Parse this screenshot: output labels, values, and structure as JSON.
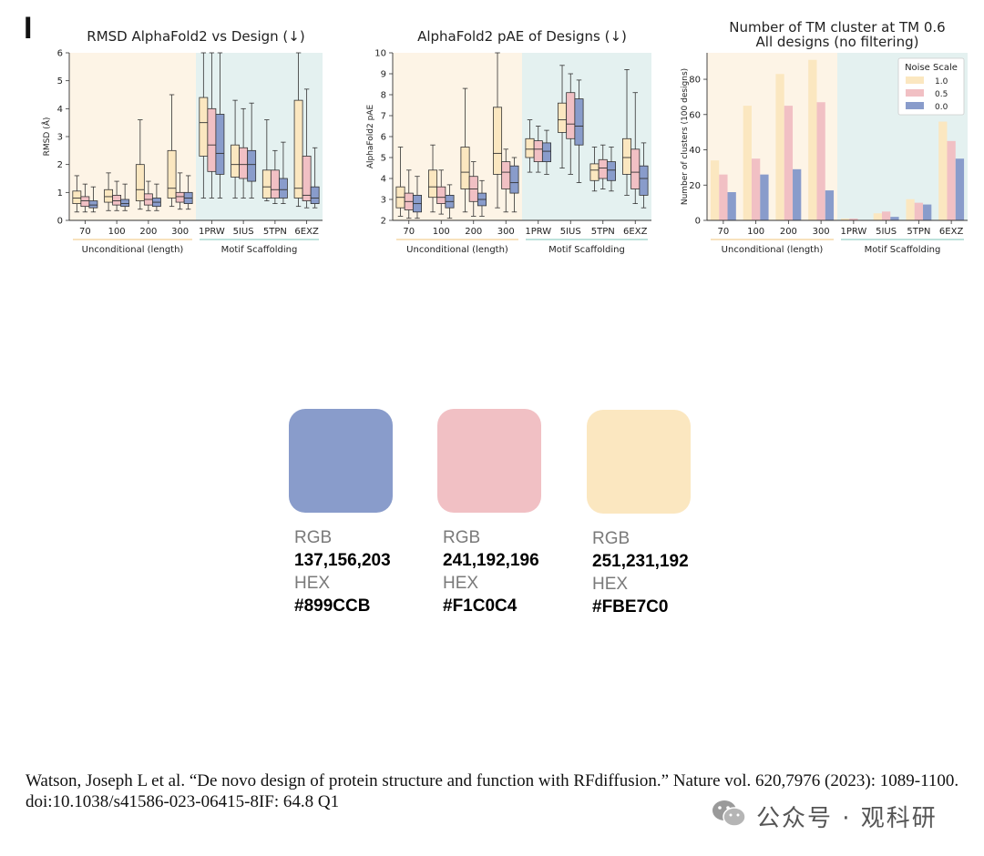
{
  "panel_letter": "I",
  "colors": {
    "c10": "#FBE7C0",
    "c05": "#F1C0C4",
    "c00": "#899CCB",
    "bg_uncond": "#FDF4E6",
    "bg_motif": "#E4F1F0",
    "line_uncond": "#F6D9A8",
    "line_motif": "#A8D8D0"
  },
  "chart_data": [
    {
      "type": "box",
      "title": "RMSD AlphaFold2 vs Design (↓)",
      "ylabel": "RMSD (Å)",
      "ylim": [
        0,
        6
      ],
      "yticks": [
        "0",
        "1",
        "2",
        "3",
        "4",
        "5",
        "6"
      ],
      "categories": [
        "70",
        "100",
        "200",
        "300",
        "1PRW",
        "5IUS",
        "5TPN",
        "6EXZ"
      ],
      "groups": [
        {
          "label": "Unconditional (length)",
          "count": 4
        },
        {
          "label": "Motif Scaffolding",
          "count": 4
        }
      ],
      "series": [
        {
          "name": "1.0",
          "color": "#FBE7C0",
          "boxes": [
            [
              0.3,
              0.6,
              0.8,
              1.05,
              1.6
            ],
            [
              0.35,
              0.65,
              0.85,
              1.1,
              1.7
            ],
            [
              0.4,
              0.7,
              1.1,
              2.0,
              3.6
            ],
            [
              0.5,
              0.8,
              1.15,
              2.5,
              4.5
            ],
            [
              0.8,
              2.3,
              3.5,
              4.4,
              6.0
            ],
            [
              0.8,
              1.55,
              2.0,
              2.7,
              4.3
            ],
            [
              0.7,
              0.8,
              1.2,
              1.8,
              3.6
            ],
            [
              0.5,
              0.8,
              1.15,
              4.3,
              6.0
            ]
          ]
        },
        {
          "name": "0.5",
          "color": "#F1C0C4",
          "boxes": [
            [
              0.3,
              0.5,
              0.7,
              0.85,
              1.3
            ],
            [
              0.35,
              0.55,
              0.7,
              0.9,
              1.4
            ],
            [
              0.35,
              0.55,
              0.75,
              0.95,
              1.4
            ],
            [
              0.4,
              0.65,
              0.85,
              1.0,
              1.7
            ],
            [
              0.8,
              1.75,
              2.7,
              4.0,
              6.0
            ],
            [
              0.8,
              1.5,
              2.0,
              2.6,
              4.0
            ],
            [
              0.6,
              0.8,
              1.1,
              1.8,
              2.5
            ],
            [
              0.45,
              0.7,
              0.9,
              2.3,
              4.7
            ]
          ]
        },
        {
          "name": "0.0",
          "color": "#899CCB",
          "boxes": [
            [
              0.3,
              0.45,
              0.55,
              0.7,
              1.2
            ],
            [
              0.35,
              0.5,
              0.6,
              0.75,
              1.3
            ],
            [
              0.35,
              0.5,
              0.65,
              0.8,
              1.3
            ],
            [
              0.4,
              0.6,
              0.8,
              1.0,
              1.6
            ],
            [
              0.8,
              1.65,
              2.4,
              3.8,
              6.0
            ],
            [
              0.8,
              1.4,
              2.0,
              2.5,
              4.2
            ],
            [
              0.6,
              0.8,
              1.1,
              1.5,
              2.8
            ],
            [
              0.45,
              0.6,
              0.8,
              1.2,
              2.6
            ]
          ]
        }
      ]
    },
    {
      "type": "box",
      "title": "AlphaFold2 pAE of Designs (↓)",
      "ylabel": "AlphaFold2 pAE",
      "ylim": [
        2,
        10
      ],
      "yticks": [
        "2",
        "3",
        "4",
        "5",
        "6",
        "7",
        "8",
        "9",
        "10"
      ],
      "categories": [
        "70",
        "100",
        "200",
        "300",
        "1PRW",
        "5IUS",
        "5TPN",
        "6EXZ"
      ],
      "groups": [
        {
          "label": "Unconditional (length)",
          "count": 4
        },
        {
          "label": "Motif Scaffolding",
          "count": 4
        }
      ],
      "series": [
        {
          "name": "1.0",
          "color": "#FBE7C0",
          "boxes": [
            [
              2.2,
              2.6,
              3.1,
              3.6,
              5.5
            ],
            [
              2.4,
              3.1,
              3.6,
              4.4,
              5.6
            ],
            [
              2.4,
              3.5,
              4.3,
              5.5,
              8.3
            ],
            [
              2.6,
              4.2,
              5.2,
              7.4,
              10.0
            ],
            [
              4.3,
              5.0,
              5.4,
              5.9,
              6.8
            ],
            [
              4.5,
              6.2,
              6.8,
              7.6,
              9.4
            ],
            [
              3.4,
              3.9,
              4.4,
              4.7,
              5.5
            ],
            [
              3.2,
              4.2,
              5.0,
              5.9,
              9.2
            ]
          ]
        },
        {
          "name": "0.5",
          "color": "#F1C0C4",
          "boxes": [
            [
              2.1,
              2.5,
              2.9,
              3.3,
              4.4
            ],
            [
              2.3,
              2.8,
              3.1,
              3.6,
              4.4
            ],
            [
              2.2,
              2.9,
              3.5,
              4.1,
              4.8
            ],
            [
              2.4,
              3.5,
              4.3,
              4.8,
              5.4
            ],
            [
              4.3,
              4.8,
              5.4,
              5.8,
              6.5
            ],
            [
              4.2,
              5.9,
              6.6,
              8.1,
              9.0
            ],
            [
              3.5,
              4.0,
              4.5,
              4.9,
              5.6
            ],
            [
              2.8,
              3.5,
              4.3,
              5.4,
              8.1
            ]
          ]
        },
        {
          "name": "0.0",
          "color": "#899CCB",
          "boxes": [
            [
              2.1,
              2.4,
              2.8,
              3.2,
              4.1
            ],
            [
              2.1,
              2.6,
              2.9,
              3.2,
              3.7
            ],
            [
              2.2,
              2.7,
              3.0,
              3.3,
              3.9
            ],
            [
              2.4,
              3.3,
              3.8,
              4.6,
              5.0
            ],
            [
              4.2,
              4.8,
              5.3,
              5.7,
              6.3
            ],
            [
              3.8,
              5.6,
              6.5,
              7.8,
              8.7
            ],
            [
              3.4,
              3.9,
              4.4,
              4.8,
              5.5
            ],
            [
              2.6,
              3.2,
              4.0,
              4.6,
              5.7
            ]
          ]
        }
      ]
    },
    {
      "type": "bar",
      "title": "Number of TM cluster at TM 0.6",
      "subtitle": "All designs (no filtering)",
      "ylabel": "Number of clusters (100 designs)",
      "ylim": [
        0,
        95
      ],
      "yticks": [
        "0",
        "20",
        "40",
        "60",
        "80"
      ],
      "categories": [
        "70",
        "100",
        "200",
        "300",
        "1PRW",
        "5IUS",
        "5TPN",
        "6EXZ"
      ],
      "groups": [
        {
          "label": "Unconditional (length)",
          "count": 4
        },
        {
          "label": "Motif Scaffolding",
          "count": 4
        }
      ],
      "legend": {
        "title": "Noise Scale",
        "position": "top-right"
      },
      "series": [
        {
          "name": "1.0",
          "color": "#FBE7C0",
          "values": [
            34,
            65,
            83,
            91,
            1,
            4,
            12,
            56
          ]
        },
        {
          "name": "0.5",
          "color": "#F1C0C4",
          "values": [
            26,
            35,
            65,
            67,
            1,
            5,
            10,
            45
          ]
        },
        {
          "name": "0.0",
          "color": "#899CCB",
          "values": [
            16,
            26,
            29,
            17,
            0,
            2,
            9,
            35
          ]
        }
      ]
    }
  ],
  "swatches": [
    {
      "rgb_label": "RGB",
      "rgb": "137,156,203",
      "hex_label": "HEX",
      "hex": "#899CCB",
      "color": "#899CCB"
    },
    {
      "rgb_label": "RGB",
      "rgb": "241,192,196",
      "hex_label": "HEX",
      "hex": "#F1C0C4",
      "color": "#F1C0C4"
    },
    {
      "rgb_label": "RGB",
      "rgb": "251,231,192",
      "hex_label": "HEX",
      "hex": "#FBE7C0",
      "color": "#FBE7C0"
    }
  ],
  "citation": "Watson, Joseph L et al. “De novo design of protein structure and function with RFdiffusion.” Nature vol. 620,7976 (2023): 1089-1100. doi:10.1038/s41586-023-06415-8IF: 64.8 Q1",
  "watermark": {
    "icon": "wechat-icon",
    "text": "公众号 · 观科研"
  }
}
